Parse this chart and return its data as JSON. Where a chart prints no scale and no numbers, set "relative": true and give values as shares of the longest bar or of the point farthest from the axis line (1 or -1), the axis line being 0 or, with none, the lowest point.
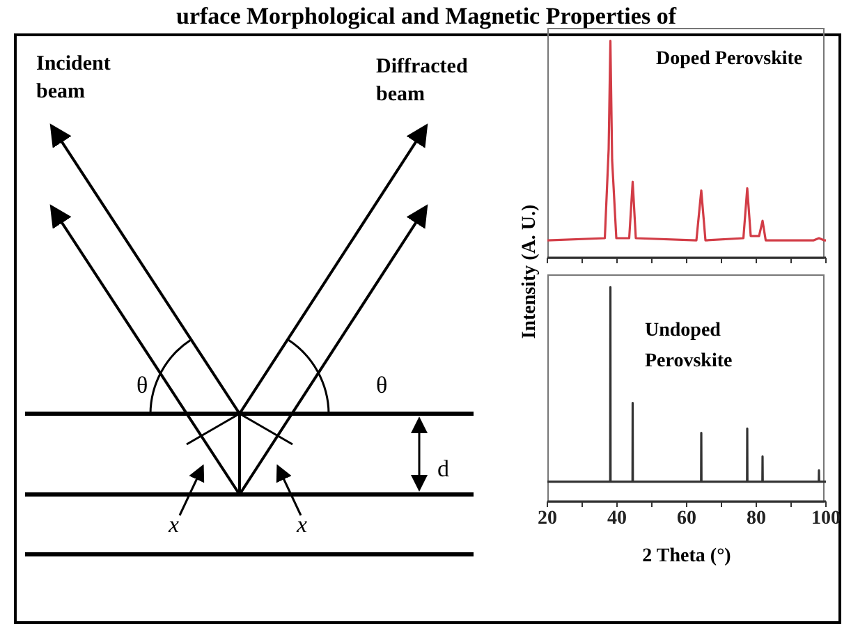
{
  "chart_data": [
    {
      "type": "other",
      "title": "urface Morphological and Magnetic Properties of",
      "annotations": [
        "Incident beam",
        "Diffracted beam",
        "θ",
        "θ",
        "d",
        "x",
        "x"
      ]
    },
    {
      "type": "line",
      "title": "Doped Perovskite",
      "relative": true,
      "tick_labels": false,
      "xlim": [
        20,
        100
      ],
      "xticks": [
        20,
        30,
        40,
        50,
        60,
        70,
        80,
        90,
        100
      ],
      "x": [
        20,
        36.5,
        37.6,
        38.1,
        38.6,
        39.8,
        43.5,
        44.5,
        45.4,
        62.8,
        64.2,
        65.4,
        76.3,
        77.4,
        78.4,
        80.8,
        81.8,
        82.7,
        96.5,
        98,
        99.5,
        100
      ],
      "series": [
        {
          "color": "#d23c46",
          "values": [
            0.08,
            0.09,
            0.5,
            1,
            0.45,
            0.09,
            0.09,
            0.35,
            0.09,
            0.08,
            0.31,
            0.08,
            0.09,
            0.32,
            0.1,
            0.1,
            0.17,
            0.08,
            0.08,
            0.09,
            0.08,
            0.08
          ]
        }
      ]
    },
    {
      "type": "line",
      "title": "Undoped Perovskite",
      "relative": true,
      "xlabel": "2 Theta (°)",
      "ylabel": "Intensity (A. U.)",
      "xlim": [
        20,
        100
      ],
      "xticks": [
        20,
        {
          "value": 30,
          "label": null
        },
        40,
        {
          "value": 50,
          "label": null
        },
        60,
        {
          "value": 70,
          "label": null
        },
        80,
        {
          "value": 90,
          "label": null
        },
        100
      ],
      "x": [
        20,
        38.05,
        38.1,
        38.15,
        44.45,
        44.5,
        44.55,
        64.15,
        64.2,
        64.25,
        77.35,
        77.4,
        77.45,
        81.75,
        81.8,
        81.85,
        97.95,
        98,
        98.05,
        100
      ],
      "series": [
        {
          "color": "#333333",
          "values": [
            0.092,
            0.092,
            1,
            0.092,
            0.092,
            0.46,
            0.092,
            0.092,
            0.32,
            0.092,
            0.092,
            0.34,
            0.092,
            0.092,
            0.21,
            0.092,
            0.092,
            0.145,
            0.092,
            0.092
          ]
        }
      ]
    }
  ]
}
